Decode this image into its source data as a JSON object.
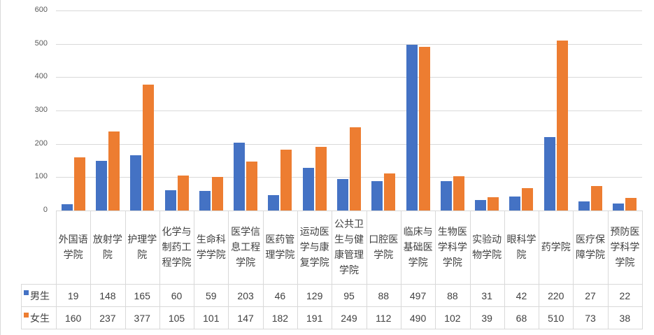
{
  "chart_data": {
    "type": "bar",
    "title": "",
    "xlabel": "",
    "ylabel": "",
    "ylim": [
      0,
      600
    ],
    "yticks": [
      0,
      100,
      200,
      300,
      400,
      500,
      600
    ],
    "grid": true,
    "legend_position": "data-table",
    "categories": [
      "外国语学院",
      "放射学院",
      "护理学院",
      "化学与制药工程学院",
      "生命科学学院",
      "医学信息工程学院",
      "医药管理学院",
      "运动医学与康复学院",
      "公共卫生与健康管理学院",
      "口腔医学院",
      "临床与基础医学院",
      "生物医学科学学院",
      "实验动物学院",
      "眼科学院",
      "药学院",
      "医疗保障学院",
      "预防医学科学学院"
    ],
    "category_lines": [
      [
        "外国语",
        "学院"
      ],
      [
        "放射学",
        "院"
      ],
      [
        "护理学",
        "院"
      ],
      [
        "化学与",
        "制药工",
        "程学院"
      ],
      [
        "生命科",
        "学学院"
      ],
      [
        "医学信",
        "息工程",
        "学院"
      ],
      [
        "医药管",
        "理学院"
      ],
      [
        "运动医",
        "学与康",
        "复学院"
      ],
      [
        "公共卫",
        "生与健",
        "康管理",
        "学院"
      ],
      [
        "口腔医",
        "学院"
      ],
      [
        "临床与",
        "基础医",
        "学院"
      ],
      [
        "生物医",
        "学科学",
        "学院"
      ],
      [
        "实验动",
        "物学院"
      ],
      [
        "眼科学",
        "院"
      ],
      [
        "药学院"
      ],
      [
        "医疗保",
        "障学院"
      ],
      [
        "预防医",
        "学科学",
        "学院"
      ]
    ],
    "series": [
      {
        "name": "男生",
        "color": "#4472c4",
        "values": [
          19,
          148,
          165,
          60,
          59,
          203,
          46,
          129,
          95,
          88,
          497,
          88,
          31,
          42,
          220,
          27,
          22
        ]
      },
      {
        "name": "女生",
        "color": "#ed7d31",
        "values": [
          160,
          237,
          377,
          105,
          101,
          147,
          182,
          191,
          249,
          112,
          490,
          102,
          39,
          68,
          510,
          73,
          38
        ]
      }
    ]
  }
}
